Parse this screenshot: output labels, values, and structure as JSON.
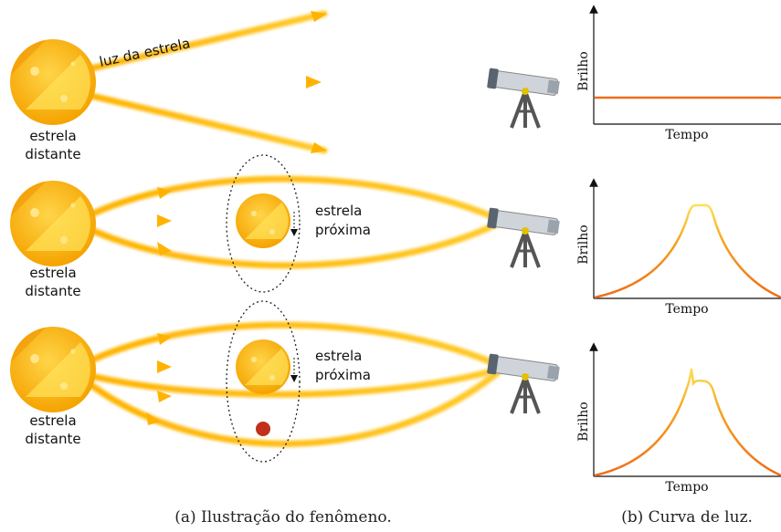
{
  "panel_a": {
    "beam_label": "luz da estrela",
    "rows": [
      {
        "source_label": [
          "estrela",
          "distante"
        ]
      },
      {
        "source_label": [
          "estrela",
          "distante"
        ],
        "lens_label": [
          "estrela",
          "próxima"
        ]
      },
      {
        "source_label": [
          "estrela",
          "distante"
        ],
        "lens_label": [
          "estrela",
          "próxima"
        ]
      }
    ],
    "caption": "(a) Ilustração do fenômeno."
  },
  "panel_b": {
    "plots": [
      {
        "y_label": "Brilho",
        "x_label": "Tempo"
      },
      {
        "y_label": "Brilho",
        "x_label": "Tempo"
      },
      {
        "y_label": "Brilho",
        "x_label": "Tempo"
      }
    ],
    "caption": "(b) Curva de luz."
  }
}
